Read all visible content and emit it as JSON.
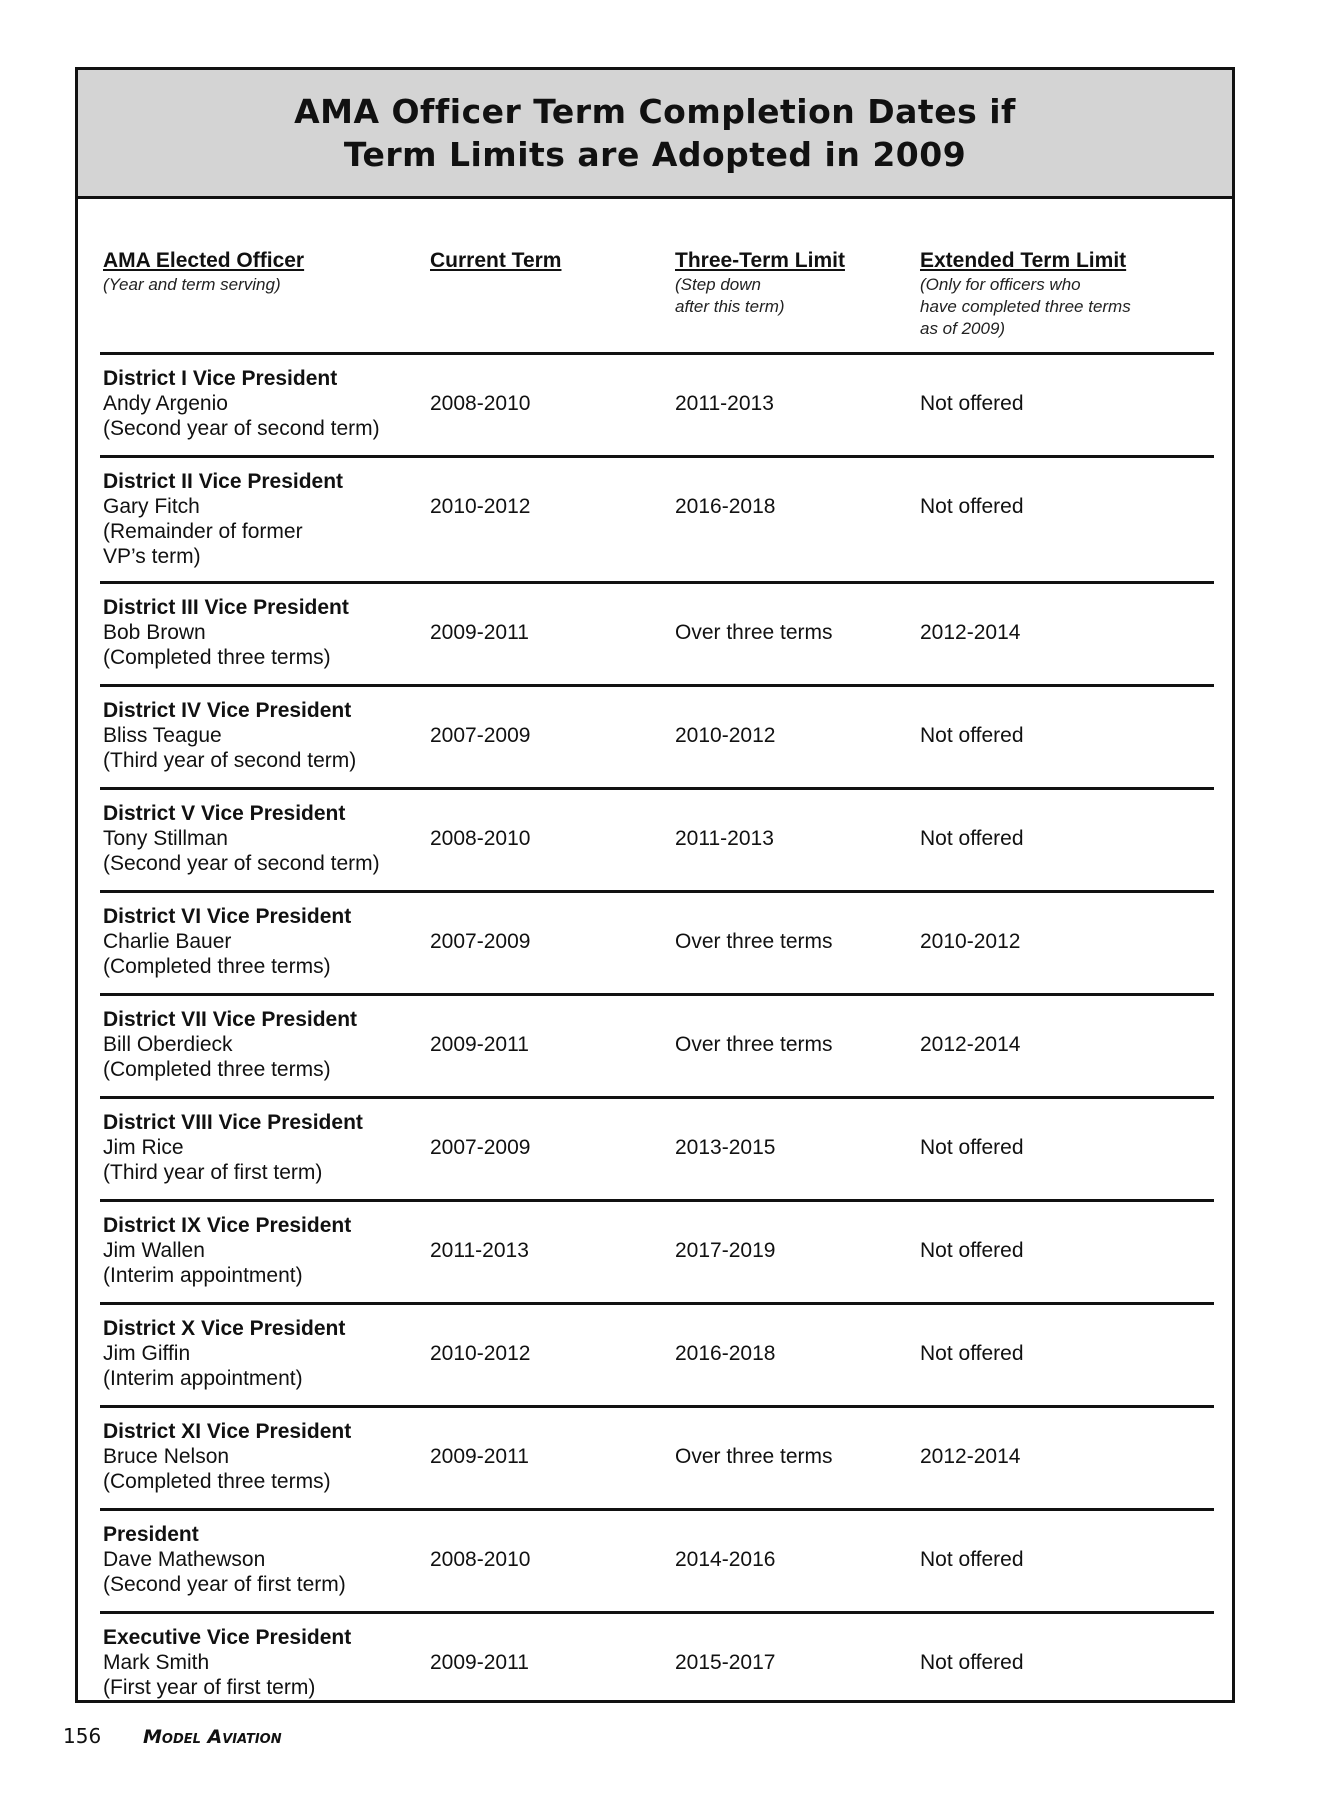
{
  "title": [
    "AMA Officer Term Completion Dates if",
    "Term Limits are Adopted in 2009"
  ],
  "headers": [
    {
      "label": "AMA Elected Officer",
      "note": [
        "(Year and term serving)"
      ]
    },
    {
      "label": "Current Term",
      "note": []
    },
    {
      "label": "Three-Term Limit",
      "note": [
        "(Step down",
        "after this term)"
      ]
    },
    {
      "label": "Extended Term Limit",
      "note": [
        "(Only for officers who",
        "have completed three terms",
        "as of 2009)"
      ]
    }
  ],
  "rows": [
    {
      "role": "District I Vice President",
      "name": "Andy Argenio",
      "note": [
        "(Second year of second term)"
      ],
      "current": "2008-2010",
      "three": "2011-2013",
      "extended": "Not offered"
    },
    {
      "role": "District II Vice President",
      "name": "Gary Fitch",
      "note": [
        "(Remainder of former",
        "VP’s term)"
      ],
      "current": "2010-2012",
      "three": "2016-2018",
      "extended": "Not offered"
    },
    {
      "role": "District III Vice President",
      "name": "Bob Brown",
      "note": [
        "(Completed three terms)"
      ],
      "current": "2009-2011",
      "three": "Over three terms",
      "extended": "2012-2014"
    },
    {
      "role": "District IV Vice President",
      "name": "Bliss Teague",
      "note": [
        "(Third year of second term)"
      ],
      "current": "2007-2009",
      "three": "2010-2012",
      "extended": "Not offered"
    },
    {
      "role": "District V Vice President",
      "name": "Tony Stillman",
      "note": [
        "(Second year of second term)"
      ],
      "current": "2008-2010",
      "three": "2011-2013",
      "extended": "Not offered"
    },
    {
      "role": "District VI Vice President",
      "name": "Charlie Bauer",
      "note": [
        "(Completed three terms)"
      ],
      "current": "2007-2009",
      "three": "Over three terms",
      "extended": "2010-2012"
    },
    {
      "role": "District VII Vice President",
      "name": "Bill Oberdieck",
      "note": [
        "(Completed three terms)"
      ],
      "current": "2009-2011",
      "three": "Over three terms",
      "extended": "2012-2014"
    },
    {
      "role": "District VIII Vice President",
      "name": "Jim Rice",
      "note": [
        "(Third year of first term)"
      ],
      "current": "2007-2009",
      "three": "2013-2015",
      "extended": "Not offered"
    },
    {
      "role": "District IX Vice President",
      "name": "Jim Wallen",
      "note": [
        "(Interim appointment)"
      ],
      "current": "2011-2013",
      "three": "2017-2019",
      "extended": "Not offered"
    },
    {
      "role": "District X Vice President",
      "name": "Jim Giffin",
      "note": [
        "(Interim appointment)"
      ],
      "current": "2010-2012",
      "three": "2016-2018",
      "extended": "Not offered"
    },
    {
      "role": "District XI Vice President",
      "name": "Bruce Nelson",
      "note": [
        "(Completed three terms)"
      ],
      "current": "2009-2011",
      "three": "Over three terms",
      "extended": "2012-2014"
    },
    {
      "role": "President",
      "name": "Dave Mathewson",
      "note": [
        "(Second year of first term)"
      ],
      "current": "2008-2010",
      "three": "2014-2016",
      "extended": "Not offered"
    },
    {
      "role": "Executive Vice President",
      "name": "Mark Smith",
      "note": [
        "(First year of first term)"
      ],
      "current": "2009-2011",
      "three": "2015-2017",
      "extended": "Not offered"
    }
  ],
  "footer": {
    "page": "156",
    "magazine": "Model Aviation"
  }
}
